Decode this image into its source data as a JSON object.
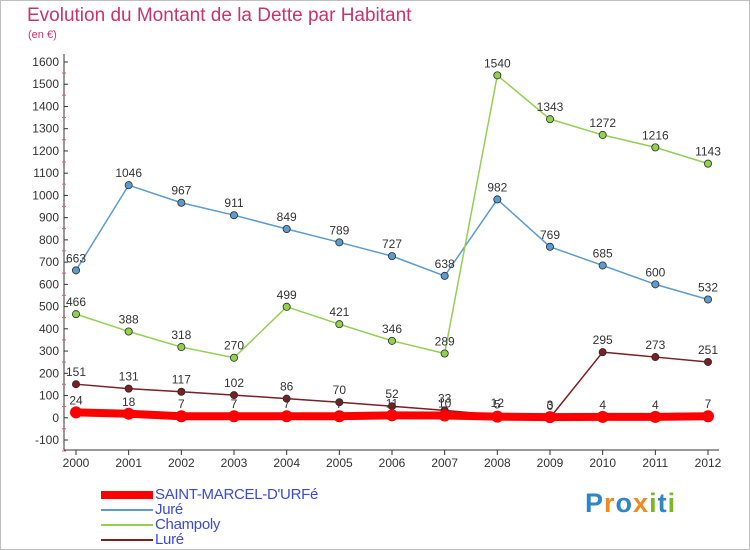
{
  "title": "Evolution du Montant de la Dette par Habitant",
  "subtitle": "(en €)",
  "logo": {
    "letters": [
      {
        "ch": "P",
        "color": "#2f86c7"
      },
      {
        "ch": "r",
        "color": "#f08a1c"
      },
      {
        "ch": "o",
        "color": "#2f86c7"
      },
      {
        "ch": "x",
        "color": "#f08a1c"
      },
      {
        "ch": "i",
        "color": "#7ab829"
      },
      {
        "ch": "t",
        "color": "#2f86c7"
      },
      {
        "ch": "i",
        "color": "#7ab829"
      }
    ]
  },
  "chart_data": {
    "type": "line",
    "title": "Evolution du Montant de la Dette par Habitant",
    "subtitle": "(en €)",
    "x": [
      "2000",
      "2001",
      "2002",
      "2003",
      "2004",
      "2005",
      "2006",
      "2007",
      "2008",
      "2009",
      "2010",
      "2011",
      "2012"
    ],
    "ylim": [
      -100,
      1600
    ],
    "yticks": [
      -100,
      0,
      100,
      200,
      300,
      400,
      500,
      600,
      700,
      800,
      900,
      1000,
      1100,
      1200,
      1300,
      1400,
      1500,
      1600
    ],
    "grid": false,
    "legend_position": "bottom-left",
    "series": [
      {
        "name": "SAINT-MARCEL-D'URFé",
        "color": "#ff0000",
        "values": [
          24,
          18,
          7,
          7,
          7,
          7,
          11,
          10,
          5,
          3,
          4,
          4,
          7
        ]
      },
      {
        "name": "Juré",
        "color": "#5b9bd0",
        "values": [
          663,
          1046,
          967,
          911,
          849,
          789,
          727,
          638,
          982,
          769,
          685,
          600,
          532
        ]
      },
      {
        "name": "Champoly",
        "color": "#92d050",
        "values": [
          466,
          388,
          318,
          270,
          499,
          421,
          346,
          289,
          1540,
          1343,
          1272,
          1216,
          1143
        ]
      },
      {
        "name": "Luré",
        "color": "#7a1f22",
        "values": [
          151,
          131,
          117,
          102,
          86,
          70,
          52,
          33,
          12,
          0,
          295,
          273,
          251
        ]
      }
    ]
  }
}
